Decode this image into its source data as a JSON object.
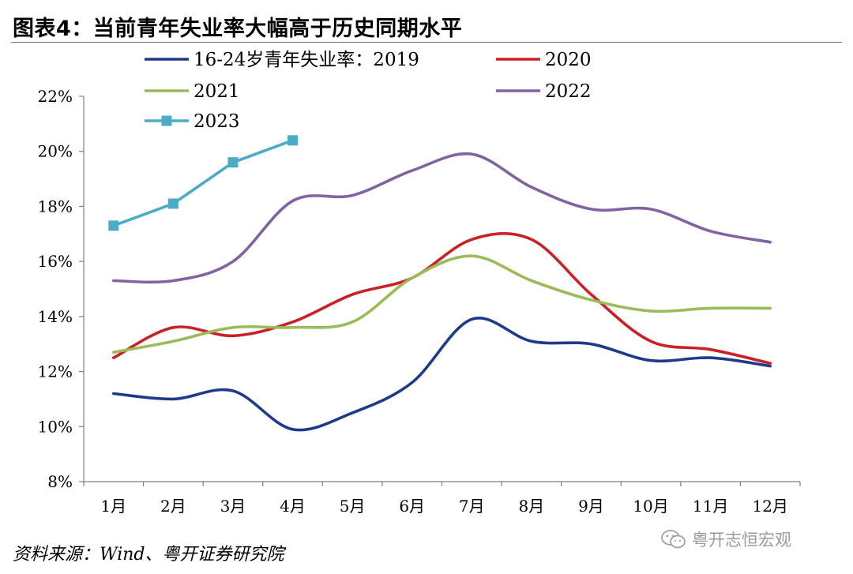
{
  "header": {
    "title": "图表4：当前青年失业率大幅高于历史同期水平"
  },
  "footer": {
    "source": "资料来源：Wind、粤开证券研究院",
    "watermark": "粤开志恒宏观",
    "watermark_icon": "wechat-icon"
  },
  "colors": {
    "2019": "#1f3a8a",
    "2020": "#cc2027",
    "2021": "#9bbb59",
    "2022": "#8064a2",
    "2023": "#4bacc6"
  },
  "chart_data": {
    "type": "line",
    "categories": [
      "1月",
      "2月",
      "3月",
      "4月",
      "5月",
      "6月",
      "7月",
      "8月",
      "9月",
      "10月",
      "11月",
      "12月"
    ],
    "ylim": [
      8,
      22
    ],
    "yticks": [
      8,
      10,
      12,
      14,
      16,
      18,
      20,
      22
    ],
    "ytick_labels": [
      "8%",
      "10%",
      "12%",
      "14%",
      "16%",
      "18%",
      "20%",
      "22%"
    ],
    "legend_position": "top",
    "grid": false,
    "series": [
      {
        "name": "16-24岁青年失业率：2019",
        "color": "#1f3a8a",
        "marker": "none",
        "values": [
          11.2,
          11.0,
          11.3,
          9.9,
          10.5,
          11.6,
          13.9,
          13.1,
          13.0,
          12.4,
          12.5,
          12.2
        ]
      },
      {
        "name": "2020",
        "color": "#cc2027",
        "marker": "none",
        "values": [
          12.5,
          13.6,
          13.3,
          13.8,
          14.8,
          15.4,
          16.8,
          16.8,
          14.8,
          13.1,
          12.8,
          12.3
        ]
      },
      {
        "name": "2021",
        "color": "#9bbb59",
        "marker": "none",
        "values": [
          12.7,
          13.1,
          13.6,
          13.6,
          13.8,
          15.4,
          16.2,
          15.3,
          14.6,
          14.2,
          14.3,
          14.3
        ]
      },
      {
        "name": "2022",
        "color": "#8064a2",
        "marker": "none",
        "values": [
          15.3,
          15.3,
          16.0,
          18.2,
          18.4,
          19.3,
          19.9,
          18.7,
          17.9,
          17.9,
          17.1,
          16.7
        ]
      },
      {
        "name": "2023",
        "color": "#4bacc6",
        "marker": "square",
        "values": [
          17.3,
          18.1,
          19.6,
          20.4,
          null,
          null,
          null,
          null,
          null,
          null,
          null,
          null
        ]
      }
    ]
  }
}
